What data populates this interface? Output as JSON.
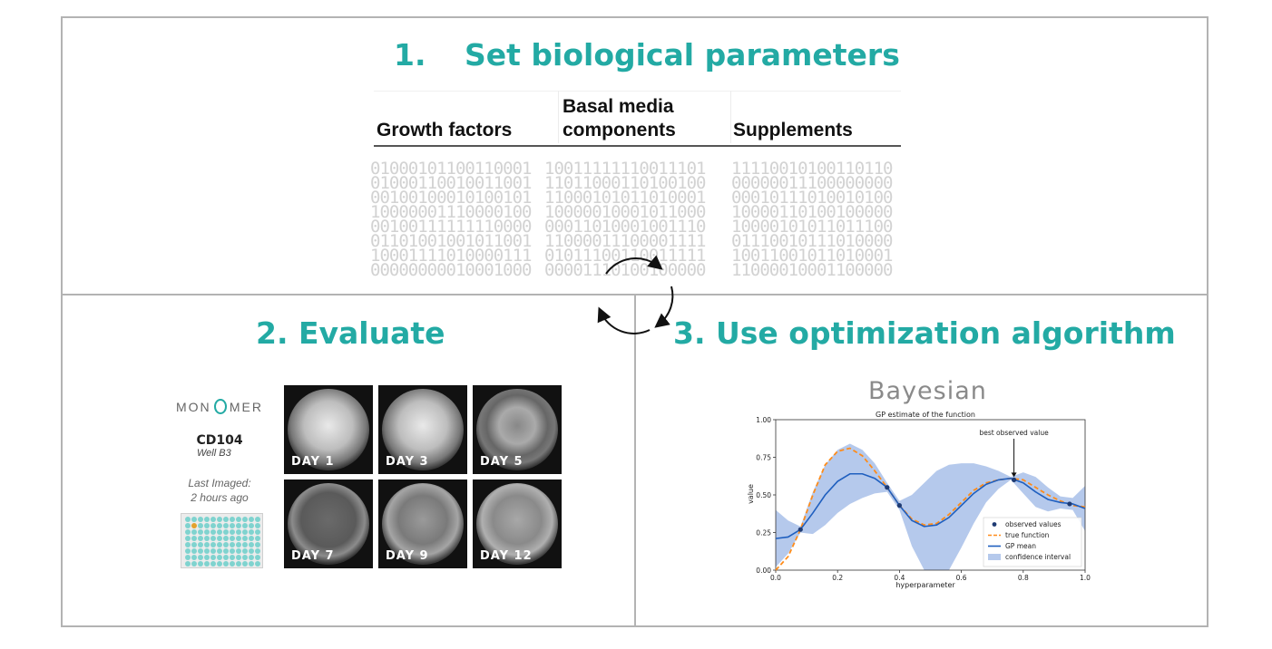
{
  "step1": {
    "number": "1.",
    "title": "Set biological parameters"
  },
  "step2": {
    "title": "2. Evaluate"
  },
  "step3": {
    "title": "3. Use optimization algorithm"
  },
  "parameters_table": {
    "columns": [
      {
        "line1": "Growth factors",
        "line2": ""
      },
      {
        "line1": "Basal media",
        "line2": "components"
      },
      {
        "line1": "Supplements",
        "line2": ""
      }
    ]
  },
  "evaluate_panel": {
    "logo_left": "MON",
    "logo_right": "MER",
    "sample_id": "CD104",
    "well": "Well B3",
    "last_imaged_label": "Last Imaged:",
    "last_imaged_value": "2 hours ago",
    "images": [
      {
        "label": "DAY 1"
      },
      {
        "label": "DAY 3"
      },
      {
        "label": "DAY 5"
      },
      {
        "label": "DAY 7"
      },
      {
        "label": "DAY 9"
      },
      {
        "label": "DAY 12"
      }
    ]
  },
  "algorithm_panel": {
    "method": "Bayesian"
  },
  "chart_data": {
    "type": "line",
    "title": "GP estimate of the function",
    "xlabel": "hyperparameter",
    "ylabel": "value",
    "xlim": [
      0.0,
      1.0
    ],
    "ylim": [
      0.0,
      1.0
    ],
    "xticks": [
      "0.0",
      "0.2",
      "0.4",
      "0.6",
      "0.8",
      "1.0"
    ],
    "yticks": [
      "0.00",
      "0.25",
      "0.50",
      "0.75",
      "1.00"
    ],
    "annotation": {
      "text": "best observed value",
      "x": 0.77,
      "y": 0.6
    },
    "legend": {
      "placement": "bottom-right",
      "entries": [
        "observed values",
        "true function",
        "GP mean",
        "confidence interval"
      ]
    },
    "colors": {
      "observed": "#1f3b73",
      "true_function": "#ff8c1a",
      "gp_mean": "#1f5fbf",
      "confidence": "#b5c9ec"
    },
    "observed": {
      "x": [
        0.08,
        0.36,
        0.4,
        0.77,
        0.95
      ],
      "y": [
        0.27,
        0.55,
        0.43,
        0.6,
        0.44
      ]
    },
    "true_function": {
      "x": [
        0.0,
        0.04,
        0.08,
        0.12,
        0.16,
        0.2,
        0.24,
        0.28,
        0.32,
        0.36,
        0.4,
        0.44,
        0.48,
        0.52,
        0.56,
        0.6,
        0.64,
        0.68,
        0.72,
        0.76,
        0.8,
        0.84,
        0.88,
        0.92,
        0.96,
        1.0
      ],
      "y": [
        0.0,
        0.09,
        0.27,
        0.5,
        0.7,
        0.79,
        0.81,
        0.76,
        0.66,
        0.55,
        0.43,
        0.34,
        0.3,
        0.31,
        0.37,
        0.45,
        0.53,
        0.58,
        0.6,
        0.61,
        0.6,
        0.55,
        0.5,
        0.46,
        0.43,
        0.42
      ]
    },
    "gp_mean": {
      "x": [
        0.0,
        0.04,
        0.08,
        0.12,
        0.16,
        0.2,
        0.24,
        0.28,
        0.32,
        0.36,
        0.4,
        0.44,
        0.48,
        0.52,
        0.56,
        0.6,
        0.64,
        0.68,
        0.72,
        0.76,
        0.8,
        0.84,
        0.88,
        0.92,
        0.96,
        1.0
      ],
      "y": [
        0.21,
        0.22,
        0.27,
        0.38,
        0.5,
        0.59,
        0.64,
        0.64,
        0.61,
        0.55,
        0.43,
        0.33,
        0.29,
        0.3,
        0.35,
        0.43,
        0.51,
        0.57,
        0.6,
        0.61,
        0.58,
        0.52,
        0.47,
        0.45,
        0.44,
        0.41
      ]
    },
    "confidence_upper": [
      0.4,
      0.33,
      0.29,
      0.52,
      0.7,
      0.8,
      0.84,
      0.8,
      0.71,
      0.58,
      0.46,
      0.5,
      0.58,
      0.66,
      0.7,
      0.71,
      0.71,
      0.69,
      0.66,
      0.62,
      0.65,
      0.62,
      0.55,
      0.49,
      0.48,
      0.56
    ],
    "confidence_lower": [
      0.02,
      0.11,
      0.25,
      0.24,
      0.3,
      0.38,
      0.44,
      0.48,
      0.51,
      0.52,
      0.4,
      0.16,
      0.0,
      0.0,
      0.0,
      0.15,
      0.31,
      0.45,
      0.54,
      0.6,
      0.51,
      0.42,
      0.39,
      0.41,
      0.4,
      0.26
    ]
  }
}
